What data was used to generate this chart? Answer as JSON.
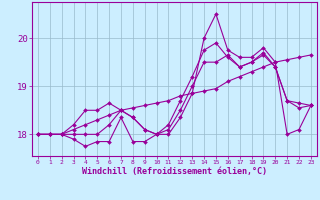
{
  "xlabel": "Windchill (Refroidissement éolien,°C)",
  "bg_color": "#cceeff",
  "line_color": "#990099",
  "grid_color": "#99bbcc",
  "xlim": [
    -0.5,
    23.5
  ],
  "ylim": [
    17.55,
    20.75
  ],
  "yticks": [
    18,
    19,
    20
  ],
  "xticks": [
    0,
    1,
    2,
    3,
    4,
    5,
    6,
    7,
    8,
    9,
    10,
    11,
    12,
    13,
    14,
    15,
    16,
    17,
    18,
    19,
    20,
    21,
    22,
    23
  ],
  "series": [
    [
      18.0,
      18.0,
      18.0,
      17.9,
      17.75,
      17.85,
      17.85,
      18.35,
      17.85,
      17.85,
      18.0,
      18.0,
      18.35,
      18.85,
      20.0,
      20.5,
      19.75,
      19.6,
      19.6,
      19.8,
      19.5,
      18.0,
      18.1,
      18.6
    ],
    [
      18.0,
      18.0,
      18.0,
      18.0,
      18.0,
      18.0,
      18.2,
      18.5,
      18.35,
      18.1,
      18.0,
      18.1,
      18.5,
      19.0,
      19.5,
      19.5,
      19.65,
      19.4,
      19.5,
      19.65,
      19.4,
      18.7,
      18.65,
      18.6
    ],
    [
      18.0,
      18.0,
      18.0,
      18.2,
      18.5,
      18.5,
      18.65,
      18.5,
      18.35,
      18.1,
      18.0,
      18.2,
      18.7,
      19.2,
      19.75,
      19.9,
      19.6,
      19.4,
      19.5,
      19.7,
      19.4,
      18.7,
      18.55,
      18.6
    ],
    [
      18.0,
      18.0,
      18.0,
      18.1,
      18.2,
      18.3,
      18.4,
      18.5,
      18.55,
      18.6,
      18.65,
      18.7,
      18.8,
      18.85,
      18.9,
      18.95,
      19.1,
      19.2,
      19.3,
      19.4,
      19.5,
      19.55,
      19.6,
      19.65
    ]
  ]
}
